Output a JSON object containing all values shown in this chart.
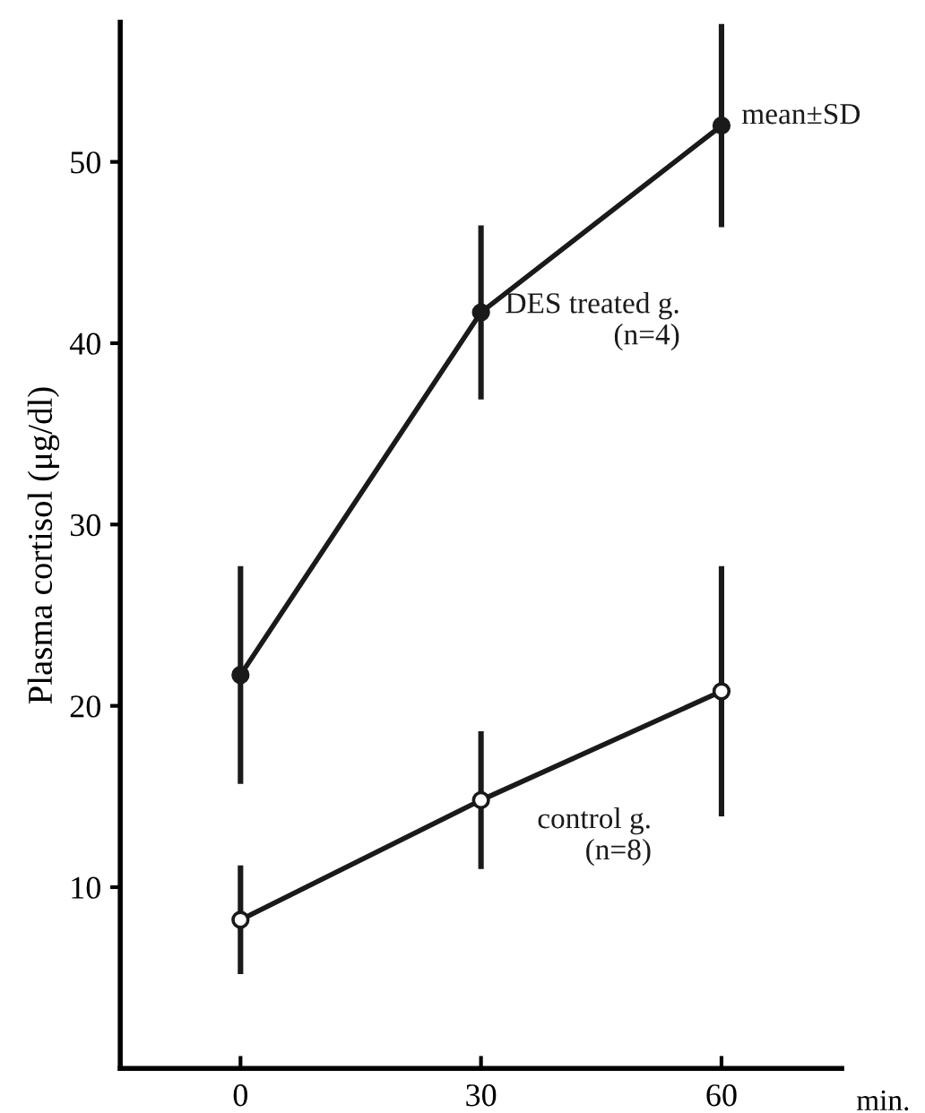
{
  "chart_data": {
    "type": "line",
    "xlabel": "min.",
    "ylabel": "Plasma cortisol (μg/dl)",
    "x": [
      0,
      30,
      60
    ],
    "xlim": [
      -15,
      75
    ],
    "xticks": [
      0,
      30,
      60
    ],
    "ylim": [
      0,
      57.7
    ],
    "yticks": [
      10,
      20,
      30,
      40,
      50
    ],
    "series": [
      {
        "name": "DES treated g.\n(n=4)",
        "color": "#1a1a1a",
        "values": [
          21.7,
          41.7,
          52.0
        ],
        "errors": [
          6.0,
          4.8,
          5.6
        ]
      },
      {
        "name": "control g.\n(n=8)",
        "color": "#1a1a1a",
        "values": [
          8.2,
          14.8,
          20.8
        ],
        "errors": [
          3.0,
          3.8,
          6.9
        ]
      }
    ],
    "annotations": [
      "mean±SD"
    ],
    "marker": "circle",
    "line_style": "solid",
    "grid": false,
    "legend": false
  }
}
